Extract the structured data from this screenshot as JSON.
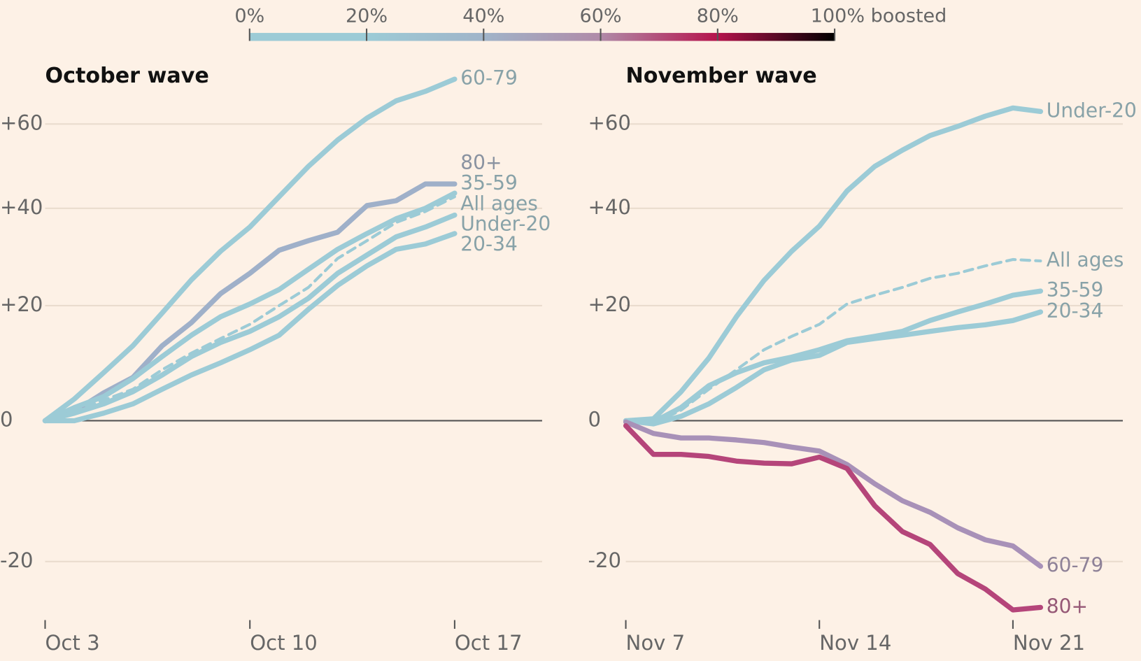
{
  "colorbar": {
    "ticks": [
      {
        "value": 0,
        "label": "0%"
      },
      {
        "value": 20,
        "label": "20%"
      },
      {
        "value": 40,
        "label": "40%"
      },
      {
        "value": 60,
        "label": "60%"
      },
      {
        "value": 80,
        "label": "80%"
      },
      {
        "value": 100,
        "label": "100% boosted"
      }
    ],
    "colors": [
      "#9ccbd6",
      "#9ccbd6",
      "#a0b4c9",
      "#b08aa8",
      "#b5134c",
      "#000000"
    ]
  },
  "chart_data": [
    {
      "type": "line",
      "title": "October wave",
      "yscale": "log-ratio",
      "ylim": [
        -28,
        80
      ],
      "yticks": [
        {
          "value": 60,
          "label": "+60"
        },
        {
          "value": 40,
          "label": "+40"
        },
        {
          "value": 20,
          "label": "+20"
        },
        0,
        -20
      ],
      "grid": true,
      "categories": [
        "Oct 3",
        null,
        null,
        null,
        null,
        null,
        null,
        "Oct 10",
        null,
        null,
        null,
        null,
        null,
        null,
        "Oct 17"
      ],
      "series": [
        {
          "name": "60-79",
          "color": "#9ccbd6",
          "values": [
            0,
            3.5,
            7.9,
            12.6,
            18.6,
            25,
            30.8,
            35.9,
            42.6,
            49.6,
            56,
            61.5,
            66,
            68.5,
            71.8
          ]
        },
        {
          "name": "80+",
          "color": "#9fb0c9",
          "values": [
            0,
            1.5,
            4.5,
            7.1,
            12.6,
            16.8,
            22.3,
            26.3,
            31,
            33,
            34.8,
            40.6,
            41.7,
            45.5,
            45.5
          ]
        },
        {
          "name": "35-59",
          "color": "#9ccbd6",
          "values": [
            0,
            2.1,
            3.9,
            6.9,
            10.7,
            14.5,
            17.9,
            20.3,
            23.1,
            27.1,
            31.2,
            34.5,
            37.7,
            40,
            43.4
          ]
        },
        {
          "name": "All ages",
          "color": "#9ccbd6",
          "dashed": true,
          "values": [
            0,
            1.5,
            3.3,
            5.1,
            8.4,
            11.3,
            13.9,
            16.5,
            20,
            23.5,
            29.3,
            33,
            36.9,
            39.3,
            42.6
          ]
        },
        {
          "name": "Under-20",
          "color": "#9ccbd6",
          "values": [
            0,
            1.2,
            2.7,
            4.7,
            7.5,
            10.7,
            13.2,
            15.2,
            17.9,
            21.4,
            26.3,
            30,
            33.8,
            35.9,
            38.5
          ]
        },
        {
          "name": "20-34",
          "color": "#9ccbd6",
          "values": [
            0,
            0,
            1.2,
            2.7,
            5.1,
            7.5,
            9.6,
            11.9,
            14.5,
            19.3,
            23.9,
            27.8,
            31.2,
            32.3,
            34.5
          ]
        }
      ]
    },
    {
      "type": "line",
      "title": "November wave",
      "yscale": "log-ratio",
      "ylim": [
        -28,
        80
      ],
      "yticks": [
        {
          "value": 60,
          "label": "+60"
        },
        {
          "value": 40,
          "label": "+40"
        },
        {
          "value": 20,
          "label": "+20"
        },
        0,
        -20
      ],
      "grid": true,
      "categories": [
        "Nov 7",
        null,
        null,
        null,
        null,
        null,
        null,
        "Nov 14",
        null,
        null,
        null,
        null,
        null,
        null,
        "Nov 21",
        null
      ],
      "series": [
        {
          "name": "Under-20",
          "color": "#9ccbd6",
          "values": [
            0,
            0.3,
            4.7,
            10.4,
            17.9,
            24.9,
            30.8,
            36.1,
            43.9,
            49.6,
            53.5,
            57.1,
            59.4,
            62,
            64.1,
            63.2
          ]
        },
        {
          "name": "All ages",
          "color": "#9ccbd6",
          "dashed": true,
          "values": [
            0,
            -0.5,
            1.7,
            5.1,
            8.4,
            11.9,
            14.3,
            16.5,
            20.3,
            22,
            23.5,
            25.3,
            26.3,
            27.8,
            29.1,
            28.8
          ]
        },
        {
          "name": "35-59",
          "color": "#9ccbd6",
          "values": [
            0,
            -0.2,
            2.1,
            5.7,
            7.9,
            9.6,
            10.6,
            11.9,
            13.5,
            14.3,
            15.2,
            17.2,
            18.8,
            20.3,
            22,
            22.8
          ]
        },
        {
          "name": "20-34",
          "color": "#9ccbd6",
          "values": [
            0,
            -0.5,
            0.7,
            2.7,
            5.4,
            8.4,
            10.1,
            10.9,
            13.2,
            13.9,
            14.5,
            15.2,
            15.9,
            16.4,
            17.2,
            18.8
          ]
        },
        {
          "name": "60-79",
          "color": "#a891b8",
          "values": [
            -0.2,
            -2,
            -2.7,
            -2.7,
            -3,
            -3.4,
            -4.1,
            -4.7,
            -6.7,
            -9.5,
            -11.9,
            -13.5,
            -15.6,
            -17.2,
            -18,
            -20.6
          ]
        },
        {
          "name": "80+",
          "color": "#b5457a",
          "values": [
            -0.8,
            -5.2,
            -5.2,
            -5.5,
            -6.2,
            -6.5,
            -6.6,
            -5.6,
            -7.3,
            -12.6,
            -16.1,
            -17.8,
            -21.5,
            -23.4,
            -25.9,
            -25.6
          ]
        }
      ]
    }
  ]
}
